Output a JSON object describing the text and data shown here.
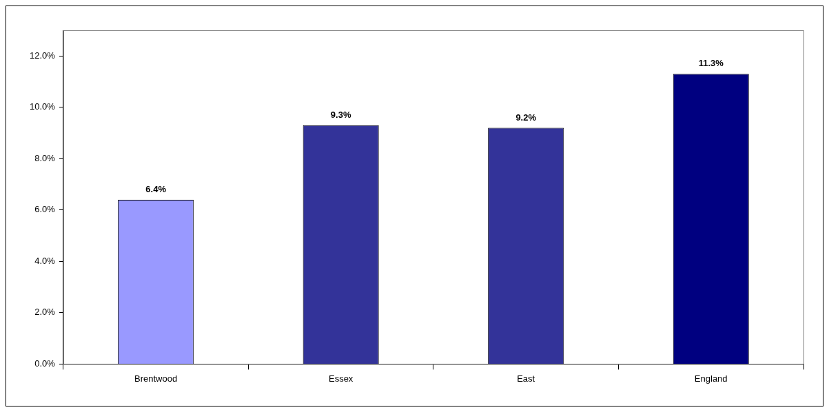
{
  "chart_data": {
    "type": "bar",
    "categories": [
      "Brentwood",
      "Essex",
      "East",
      "England"
    ],
    "values": [
      6.4,
      9.3,
      9.2,
      11.3
    ],
    "colors": [
      "#9999ff",
      "#333399",
      "#333399",
      "#000080"
    ],
    "value_labels": [
      "6.4%",
      "9.3%",
      "9.2%",
      "11.3%"
    ],
    "ylim": [
      0,
      13
    ],
    "yticks": [
      {
        "value": 0,
        "label": "0.0%"
      },
      {
        "value": 2,
        "label": "2.0%"
      },
      {
        "value": 4,
        "label": "4.0%"
      },
      {
        "value": 6,
        "label": "6.0%"
      },
      {
        "value": 8,
        "label": "8.0%"
      },
      {
        "value": 10,
        "label": "10.0%"
      },
      {
        "value": 12,
        "label": "12.0%"
      }
    ],
    "grid": false,
    "legend": false
  }
}
